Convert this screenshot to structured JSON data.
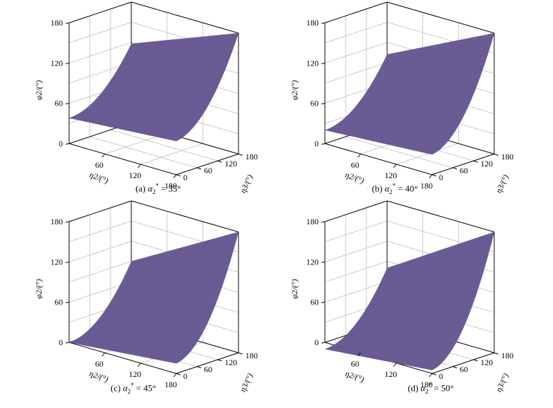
{
  "chart_data": [
    {
      "type": "surface",
      "caption": {
        "prefix": "(a) ",
        "symbol": "α",
        "sub": "2",
        "sup": "*",
        "suffix": " = 35°"
      },
      "zlabel": "φ2/(°)",
      "xlabel": "η2/(°)",
      "ylabel": "η3/(°)",
      "z_ticks": [
        "0",
        "60",
        "120",
        "180"
      ],
      "x_ticks": [
        "60",
        "120",
        "180"
      ],
      "y_ticks": [
        "0",
        "60",
        "120",
        "180"
      ],
      "xlim": [
        0,
        180
      ],
      "ylim": [
        0,
        180
      ],
      "zlim": [
        0,
        180
      ],
      "surface_corners": {
        "x0y0": 38,
        "x180y0": 50,
        "x0y180": 118,
        "x180y180": 180
      },
      "grid": true,
      "color": "#6b5b95"
    },
    {
      "type": "surface",
      "caption": {
        "prefix": "(b) ",
        "symbol": "α",
        "sub": "2",
        "sup": "*",
        "suffix": " = 40°"
      },
      "zlabel": "φ2/(°)",
      "xlabel": "η2/(°)",
      "ylabel": "η3/(°)",
      "z_ticks": [
        "0",
        "60",
        "120",
        "180"
      ],
      "x_ticks": [
        "60",
        "120",
        "180"
      ],
      "y_ticks": [
        "0",
        "60",
        "120",
        "180"
      ],
      "xlim": [
        0,
        180
      ],
      "ylim": [
        0,
        180
      ],
      "zlim": [
        0,
        180
      ],
      "surface_corners": {
        "x0y0": 20,
        "x180y0": 30,
        "x0y180": 102,
        "x180y180": 180
      },
      "grid": true,
      "color": "#6b5b95"
    },
    {
      "type": "surface",
      "caption": {
        "prefix": "(c) ",
        "symbol": "α",
        "sub": "2",
        "sup": "*",
        "suffix": " = 45°"
      },
      "zlabel": "φ2/(°)",
      "xlabel": "η2/(°)",
      "ylabel": "η3/(°)",
      "z_ticks": [
        "0",
        "60",
        "120",
        "180"
      ],
      "x_ticks": [
        "60",
        "120",
        "180"
      ],
      "y_ticks": [
        "0",
        "60",
        "120",
        "180"
      ],
      "xlim": [
        0,
        180
      ],
      "ylim": [
        0,
        180
      ],
      "zlim": [
        0,
        180
      ],
      "surface_corners": {
        "x0y0": 0,
        "x180y0": 15,
        "x0y180": 90,
        "x180y180": 180
      },
      "grid": true,
      "color": "#6b5b95"
    },
    {
      "type": "surface",
      "caption": {
        "prefix": "(d) ",
        "symbol": "α",
        "sub": "2",
        "sup": "*",
        "suffix": " = 50°"
      },
      "zlabel": "φ2/(°)",
      "xlabel": "η2/(°)",
      "ylabel": "η3/(°)",
      "z_ticks": [
        "0",
        "60",
        "120",
        "180"
      ],
      "x_ticks": [
        "60",
        "120",
        "180"
      ],
      "y_ticks": [
        "0",
        "60",
        "120",
        "180"
      ],
      "xlim": [
        0,
        180
      ],
      "ylim": [
        0,
        180
      ],
      "zlim": [
        0,
        180
      ],
      "surface_corners": {
        "x0y0": -10,
        "x180y0": 5,
        "x0y180": 80,
        "x180y180": 180
      },
      "grid": true,
      "color": "#6b5b95"
    }
  ]
}
